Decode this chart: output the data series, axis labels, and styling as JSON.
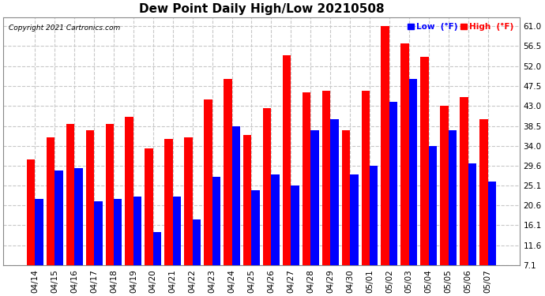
{
  "title": "Dew Point Daily High/Low 20210508",
  "copyright": "Copyright 2021 Cartronics.com",
  "legend_low": "Low  (°F)",
  "legend_high": "High  (°F)",
  "dates": [
    "04/14",
    "04/15",
    "04/16",
    "04/17",
    "04/18",
    "04/19",
    "04/20",
    "04/21",
    "04/22",
    "04/23",
    "04/24",
    "04/25",
    "04/26",
    "04/27",
    "04/28",
    "04/29",
    "04/30",
    "05/01",
    "05/02",
    "05/03",
    "05/04",
    "05/05",
    "05/06",
    "05/07"
  ],
  "high_values": [
    31.0,
    36.0,
    39.0,
    37.5,
    39.0,
    40.5,
    33.5,
    35.5,
    36.0,
    44.5,
    49.0,
    36.5,
    42.5,
    54.5,
    46.0,
    46.5,
    37.5,
    46.5,
    61.0,
    57.0,
    54.0,
    43.0,
    45.0,
    40.0
  ],
  "low_values": [
    22.0,
    28.5,
    29.0,
    21.5,
    22.0,
    22.5,
    14.5,
    22.5,
    17.5,
    27.0,
    38.5,
    24.0,
    27.5,
    25.0,
    37.5,
    40.0,
    27.5,
    29.5,
    44.0,
    49.0,
    34.0,
    37.5,
    30.0,
    26.0
  ],
  "ylim_min": 7.1,
  "ylim_max": 63.0,
  "yticks": [
    7.1,
    11.6,
    16.1,
    20.6,
    25.1,
    29.6,
    34.0,
    38.5,
    43.0,
    47.5,
    52.0,
    56.5,
    61.0
  ],
  "bar_color_high": "#ff0000",
  "bar_color_low": "#0000ff",
  "background_color": "#ffffff",
  "grid_color": "#c8c8c8",
  "title_fontsize": 11,
  "tick_fontsize": 7.5
}
